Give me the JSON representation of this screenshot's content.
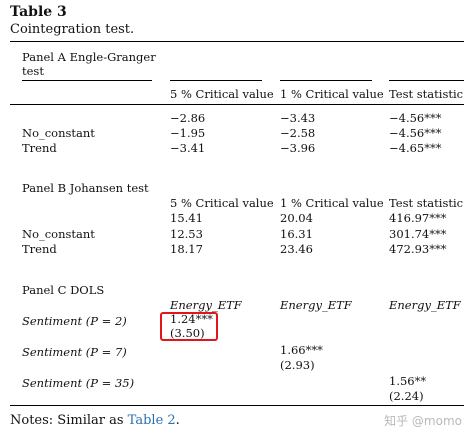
{
  "table": {
    "title": "Table 3",
    "caption": "Cointegration test.",
    "panel_a": {
      "label_line1": "Panel A Engle-Granger",
      "label_line2": "test",
      "headers": [
        "5 % Critical value",
        "1 % Critical value",
        "Test statistic"
      ],
      "rows": [
        {
          "label": "",
          "c1": "−2.86",
          "c2": "−3.43",
          "c3": "−4.56***"
        },
        {
          "label": "No_constant",
          "c1": "−1.95",
          "c2": "−2.58",
          "c3": "−4.56***"
        },
        {
          "label": "Trend",
          "c1": "−3.41",
          "c2": "−3.96",
          "c3": "−4.65***"
        }
      ]
    },
    "panel_b": {
      "label": "Panel B Johansen test",
      "headers": [
        "5 % Critical value",
        "1 % Critical value",
        "Test statistic"
      ],
      "rows": [
        {
          "label": "",
          "c1": "15.41",
          "c2": "20.04",
          "c3": "416.97***"
        },
        {
          "label": "No_constant",
          "c1": "12.53",
          "c2": "16.31",
          "c3": "301.74***"
        },
        {
          "label": "Trend",
          "c1": "18.17",
          "c2": "23.46",
          "c3": "472.93***"
        }
      ]
    },
    "panel_c": {
      "label": "Panel C DOLS",
      "headers": [
        "Energy_ETF",
        "Energy_ETF",
        "Energy_ETF"
      ],
      "rows": [
        {
          "label": "Sentiment (P = 2)",
          "coef": "1.24***",
          "se": "(3.50)"
        },
        {
          "label": "Sentiment (P = 7)",
          "coef": "1.66***",
          "se": "(2.93)"
        },
        {
          "label": "Sentiment (P = 35)",
          "coef": "1.56**",
          "se": "(2.24)"
        }
      ]
    },
    "notes_prefix": "Notes: Similar as ",
    "notes_link": "Table 2",
    "notes_suffix": "."
  },
  "watermark": "知乎 @momo",
  "colors": {
    "highlight_box": "#e0161b",
    "link": "#2a6fb0"
  }
}
